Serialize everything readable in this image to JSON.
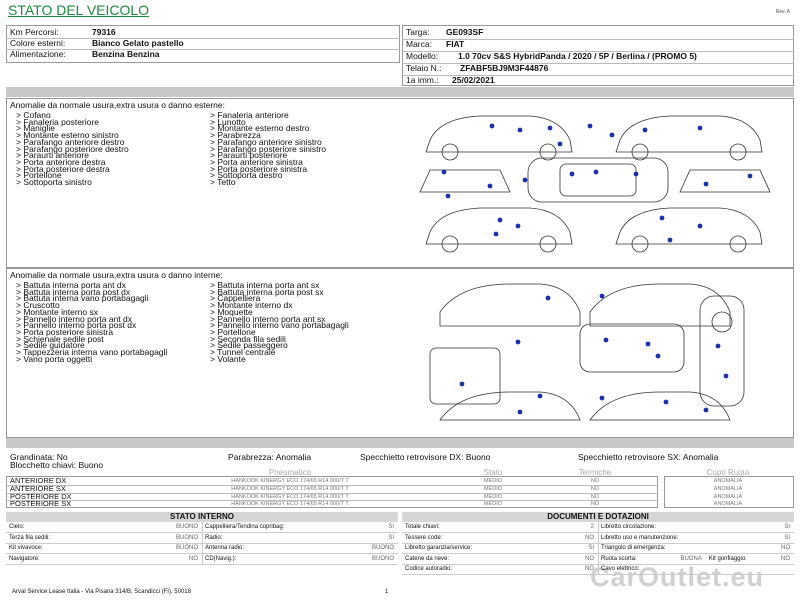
{
  "header": {
    "title": "STATO DEL VEICOLO",
    "revision": "Rev. A"
  },
  "vehicle": {
    "left": [
      {
        "label": "Km Percorsi:",
        "value": "79316"
      },
      {
        "label": "Colore esterni:",
        "value": "Bianco Gelato pastello"
      },
      {
        "label": "Alimentazione:",
        "value": "Benzina Benzina"
      }
    ],
    "right": [
      {
        "label": "Targa:",
        "value": "GE093SF"
      },
      {
        "label": "Marca:",
        "value": "FIAT"
      },
      {
        "label": "Modello:",
        "value": "1.0 70cv S&S HybridPanda / 2020 / 5P / Berlina / (PROMO 5)"
      },
      {
        "label": "Telaio N.:",
        "value": "ZFABF5BJ9M3F44876"
      },
      {
        "label": "1a imm.:",
        "value": "25/02/2021"
      }
    ]
  },
  "exterior": {
    "title": "Anomalie da normale usura,extra usura o danno esterne:",
    "columns": [
      [
        "> Cofano",
        "> Fanaleria posteriore",
        "> Maniglie",
        "> Montante esterno sinistro",
        "> Parafango anteriore destro",
        "> Parafango posteriore destro",
        "> Paraurti anteriore",
        "> Porta anteriore destra",
        "> Porta posteriore destra",
        "> Portellone",
        "> Sottoporta sinistro"
      ],
      [
        "> Fanaleria anteriore",
        "> Lunotto",
        "> Montante esterno destro",
        "> Parabrezza",
        "> Parafango anteriore sinistro",
        "> Parafango posteriore sinistro",
        "> Paraurti posteriore",
        "> Porta anteriore sinistra",
        "> Porta posteriore sinistra",
        "> Sottoporta destro",
        "> Tetto"
      ]
    ]
  },
  "interior": {
    "title": "Anomalie da normale usura,extra usura o danno interne:",
    "columns": [
      [
        "> Battuta interna porta ant dx",
        "> Battuta interna porta post dx",
        "> Battuta interna vano portabagagli",
        "> Cruscotto",
        "> Montante interno sx",
        "> Pannello interno porta ant dx",
        "> Pannello interno porta post dx",
        "> Porta posteriore sinistra",
        "> Schienale sedile post",
        "> Sedile guidatore",
        "> Tappezzeria interna vano portabagagli",
        "> Vano porta oggetti"
      ],
      [
        "> Battuta interna porta ant sx",
        "> Battuta interna porta post sx",
        "> Cappelliera",
        "> Montante interno dx",
        "> Moquette",
        "> Pannello interno porta ant sx",
        "> Pannello interno vano portabagagli",
        "> Portellone",
        "> Seconda fila sedili",
        "> Sedile passeggero",
        "> Tunnel centrale",
        "> Volante"
      ]
    ]
  },
  "status": [
    "Grandinata: No",
    "Parabrezza: Anomalia",
    "Specchietto retrovisore DX: Buono",
    "Specchietto retrovisore SX: Anomalia",
    "Blocchetto chiavi: Buono"
  ],
  "tires": {
    "headers": [
      "Pneumatico",
      "Stato",
      "Termiche",
      "Copri Ruota"
    ],
    "rows": [
      [
        "ANTERIORE DX",
        "HANKOOK KINERGY ECO 174/65 R14 000/T T",
        "MEDIO",
        "NO",
        "ANOMALIA"
      ],
      [
        "ANTERIORE SX",
        "HANKOOK KINERGY ECO 174/65 R14 000/T T",
        "MEDIO",
        "NO",
        "ANOMALIA"
      ],
      [
        "POSTERIORE DX",
        "HANKOOK KINERGY ECO 174/65 R14 000/T T",
        "MEDIO",
        "NO",
        "ANOMALIA"
      ],
      [
        "POSTERIORE SX",
        "HANKOOK KINERGY ECO 174/65 R14 000/T T",
        "MEDIO",
        "NO",
        "ANOMALIA"
      ]
    ]
  },
  "internal_state": {
    "title": "STATO INTERNO",
    "rows": [
      [
        [
          "Cielo:",
          "BUONO"
        ],
        [
          "Cappelliera/Tendina copribag:",
          "SI"
        ]
      ],
      [
        [
          "Terza fila sedili:",
          "BUONO"
        ],
        [
          "Radio:",
          "SI"
        ]
      ],
      [
        [
          "Kit vivavoce:",
          "BUONO"
        ],
        [
          "Antenna radio:",
          "BUONO"
        ]
      ],
      [
        [
          "Navigatore:",
          "NO"
        ],
        [
          "CD(Navig.):",
          "BUONO"
        ]
      ]
    ]
  },
  "documents": {
    "title": "DOCUMENTI E DOTAZIONI",
    "rows": [
      [
        [
          "Totale chiavi:",
          "2"
        ],
        [
          "Libretto circolazione:",
          "SI"
        ]
      ],
      [
        [
          "Tessere code:",
          "NO"
        ],
        [
          "Libretto uso e manutenzione:",
          "SI"
        ]
      ],
      [
        [
          "Libretto garanzia/service:",
          "SI"
        ],
        [
          "Triangolo di emergenza:",
          "NO"
        ]
      ],
      [
        [
          "Catene da neve:",
          "NO"
        ],
        [
          "Ruota scorta:",
          "BUONA"
        ],
        [
          "Kit gonfiaggio:",
          "NO"
        ]
      ],
      [
        [
          "Codice autoradio:",
          "NO"
        ],
        [
          "Cavo elettrico:"
        ]
      ]
    ]
  },
  "footer": {
    "address": "Arval Service Lease Italia - Via Pisana 314/B, Scandicci (FI), 50018",
    "page": "1",
    "watermark": "CarOutlet.eu"
  }
}
